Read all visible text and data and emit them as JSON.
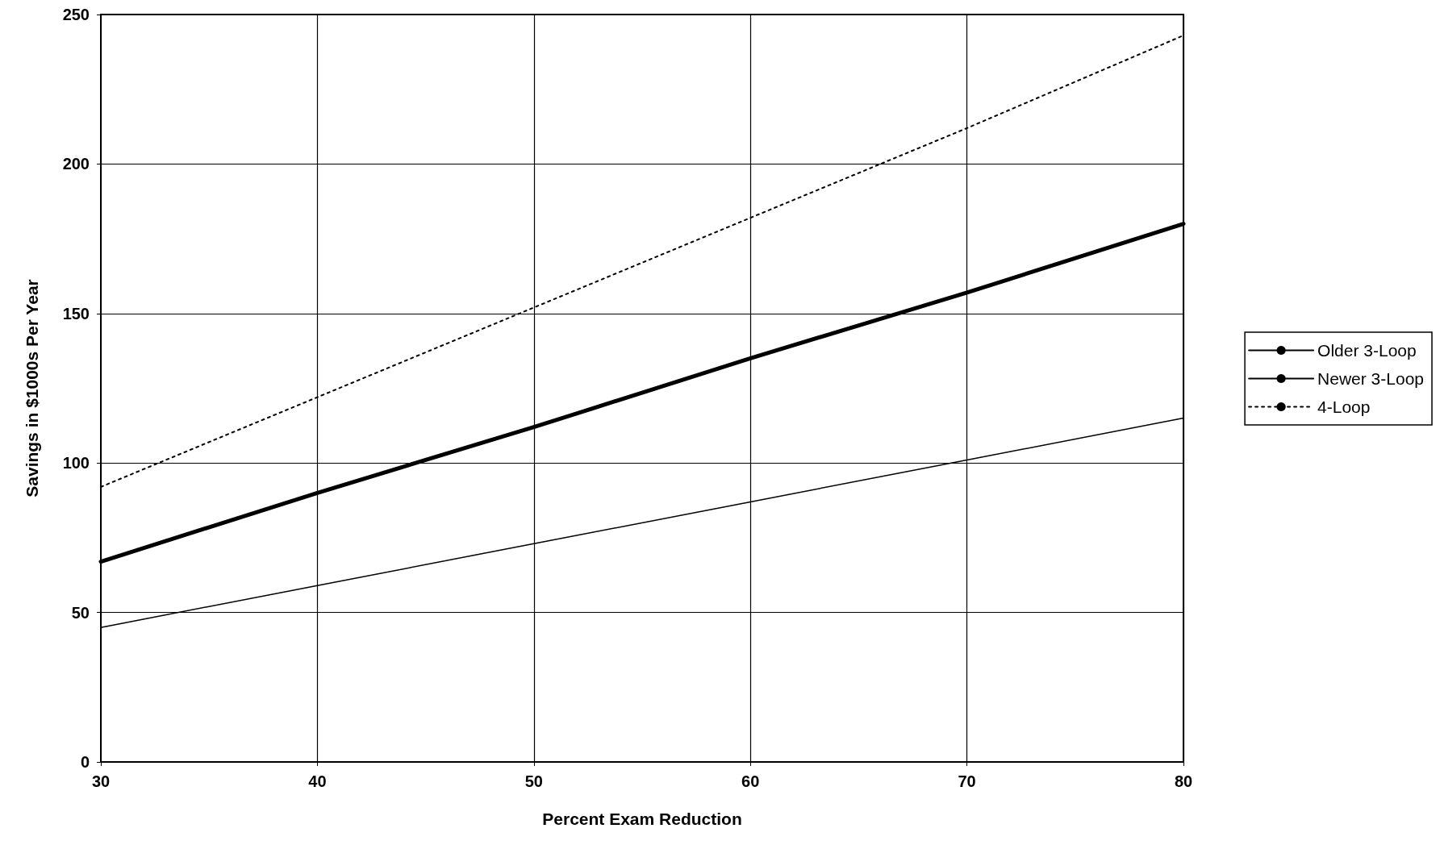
{
  "chart_data": {
    "type": "line",
    "xlabel": "Percent Exam Reduction",
    "ylabel": "Savings in $1000s Per Year",
    "x": [
      30,
      40,
      50,
      60,
      70,
      80
    ],
    "series": [
      {
        "name": "Older 3-Loop",
        "color": "#000000",
        "line_style": "solid",
        "values": [
          45,
          59,
          73,
          87,
          101,
          115
        ]
      },
      {
        "name": "Newer 3-Loop",
        "color": "#000000",
        "line_style": "solid",
        "values": [
          67,
          90,
          112,
          135,
          157,
          180
        ]
      },
      {
        "name": "4-Loop",
        "color": "#000000",
        "line_style": "dotted",
        "values": [
          92,
          122,
          152,
          182,
          212,
          243
        ]
      }
    ],
    "xlim": [
      30,
      80
    ],
    "xticks": [
      30,
      40,
      50,
      60,
      70,
      80
    ],
    "ylim": [
      0,
      250
    ],
    "yticks": [
      0,
      50,
      100,
      150,
      200,
      250
    ],
    "grid": true,
    "legend": "right",
    "marker": "none"
  }
}
